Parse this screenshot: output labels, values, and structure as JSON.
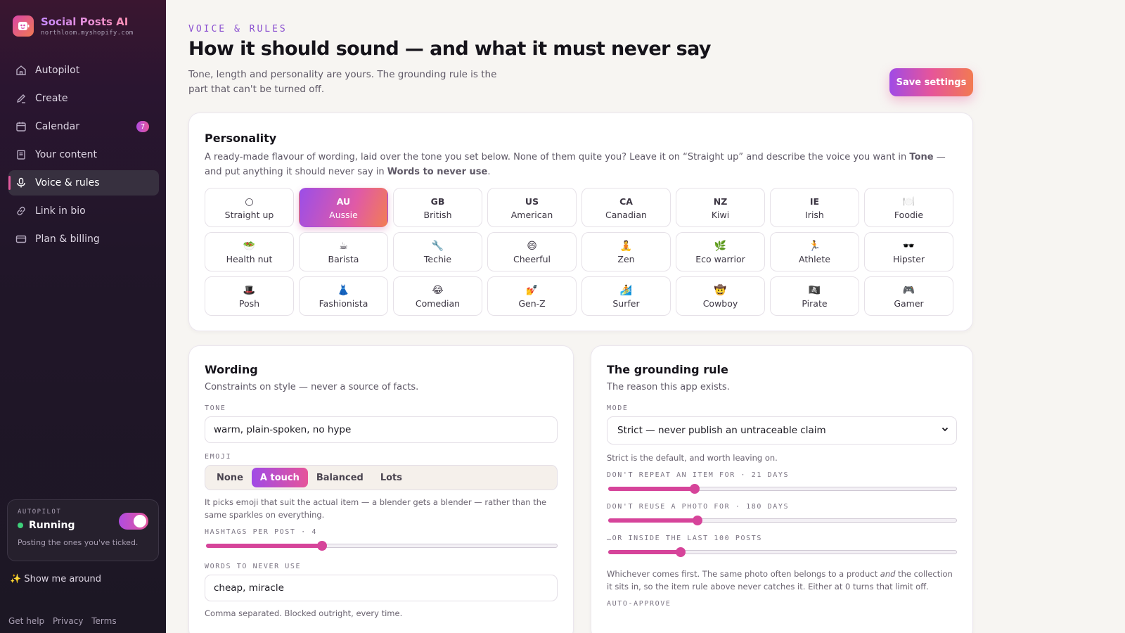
{
  "app": {
    "name": "Social Posts AI",
    "domain": "northloom.myshopify.com"
  },
  "nav": [
    {
      "key": "autopilot",
      "label": "Autopilot",
      "icon": "home-icon"
    },
    {
      "key": "create",
      "label": "Create",
      "icon": "pencil-icon"
    },
    {
      "key": "calendar",
      "label": "Calendar",
      "icon": "calendar-icon",
      "badge": "7"
    },
    {
      "key": "content",
      "label": "Your content",
      "icon": "document-icon"
    },
    {
      "key": "voice",
      "label": "Voice & rules",
      "icon": "microphone-icon",
      "active": true
    },
    {
      "key": "bio",
      "label": "Link in bio",
      "icon": "link-icon"
    },
    {
      "key": "billing",
      "label": "Plan & billing",
      "icon": "card-icon"
    }
  ],
  "autopilot": {
    "label": "AUTOPILOT",
    "status": "Running",
    "note": "Posting the ones you've ticked.",
    "enabled": true
  },
  "tour": {
    "icon": "sparkle-icon",
    "label": "Show me around"
  },
  "footer": {
    "help": "Get help",
    "privacy": "Privacy",
    "terms": "Terms"
  },
  "page": {
    "eyebrow": "VOICE & RULES",
    "title": "How it should sound — and what it must never say",
    "subtitle": "Tone, length and personality are yours. The grounding rule is the part that can't be turned off.",
    "save": "Save settings"
  },
  "personality": {
    "title": "Personality",
    "desc_before": "A ready-made flavour of wording, laid over the tone you set below. None of them quite you? Leave it on “Straight up” and describe the voice you want in ",
    "desc_b1": "Tone",
    "desc_mid": " — and put anything it should never say in ",
    "desc_b2": "Words to never use",
    "desc_end": ".",
    "options": [
      {
        "glyph": "○",
        "label": "Straight up",
        "icon": "circle-icon"
      },
      {
        "code": "AU",
        "label": "Aussie",
        "selected": true
      },
      {
        "code": "GB",
        "label": "British"
      },
      {
        "code": "US",
        "label": "American"
      },
      {
        "code": "CA",
        "label": "Canadian"
      },
      {
        "code": "NZ",
        "label": "Kiwi"
      },
      {
        "code": "IE",
        "label": "Irish"
      },
      {
        "glyph": "🍽️",
        "label": "Foodie",
        "icon": "plate-icon"
      },
      {
        "glyph": "🥗",
        "label": "Health nut",
        "icon": "salad-icon"
      },
      {
        "glyph": "☕",
        "label": "Barista",
        "icon": "coffee-icon"
      },
      {
        "glyph": "🔧",
        "label": "Techie",
        "icon": "wrench-icon"
      },
      {
        "glyph": "😄",
        "label": "Cheerful",
        "icon": "smile-icon"
      },
      {
        "glyph": "🧘",
        "label": "Zen",
        "icon": "meditation-icon"
      },
      {
        "glyph": "🌿",
        "label": "Eco warrior",
        "icon": "leaf-icon"
      },
      {
        "glyph": "🏃",
        "label": "Athlete",
        "icon": "runner-icon"
      },
      {
        "glyph": "🕶️",
        "label": "Hipster",
        "icon": "sunglasses-icon"
      },
      {
        "glyph": "🎩",
        "label": "Posh",
        "icon": "top-hat-icon"
      },
      {
        "glyph": "👗",
        "label": "Fashionista",
        "icon": "dress-icon"
      },
      {
        "glyph": "😂",
        "label": "Comedian",
        "icon": "laugh-icon"
      },
      {
        "glyph": "💅",
        "label": "Gen-Z",
        "icon": "nail-polish-icon"
      },
      {
        "glyph": "🏄",
        "label": "Surfer",
        "icon": "surfer-icon"
      },
      {
        "glyph": "🤠",
        "label": "Cowboy",
        "icon": "cowboy-icon"
      },
      {
        "glyph": "🏴‍☠️",
        "label": "Pirate",
        "icon": "pirate-flag-icon"
      },
      {
        "glyph": "🎮",
        "label": "Gamer",
        "icon": "gamepad-icon"
      }
    ]
  },
  "wording": {
    "title": "Wording",
    "desc": "Constraints on style — never a source of facts.",
    "tone_label": "TONE",
    "tone_value": "warm, plain-spoken, no hype",
    "emoji_label": "EMOJI",
    "emoji_options": [
      "None",
      "A touch",
      "Balanced",
      "Lots"
    ],
    "emoji_selected": "A touch",
    "emoji_hint": "It picks emoji that suit the actual item — a blender gets a blender — rather than the same sparkles on everything.",
    "hashtags_label": "HASHTAGS PER POST · 4",
    "hashtags_value": 4,
    "hashtags_max": 12,
    "never_label": "WORDS TO NEVER USE",
    "never_value": "cheap, miracle",
    "never_hint": "Comma separated. Blocked outright, every time."
  },
  "grounding": {
    "title": "The grounding rule",
    "desc": "The reason this app exists.",
    "mode_label": "MODE",
    "mode_value": "Strict — never publish an untraceable claim",
    "mode_hint": "Strict is the default, and worth leaving on.",
    "repeat_label": "DON'T REPEAT AN ITEM FOR · 21 DAYS",
    "repeat_fraction": 0.25,
    "reuse_label": "DON'T REUSE A PHOTO FOR · 180 DAYS",
    "reuse_fraction": 0.26,
    "inside_label": "…OR INSIDE THE LAST 100 POSTS",
    "inside_fraction": 0.21,
    "rule_hint_a": "Whichever comes first. The same photo often belongs to a product ",
    "rule_hint_em": "and",
    "rule_hint_b": " the collection it sits in, so the item rule above never catches it. Either at 0 turns that limit off.",
    "auto_label": "AUTO-APPROVE"
  },
  "colors": {
    "accent": "#d6449a",
    "brand_gradient_start": "#a04ae6",
    "brand_gradient_end": "#f27a52",
    "running": "#3ed07a"
  }
}
